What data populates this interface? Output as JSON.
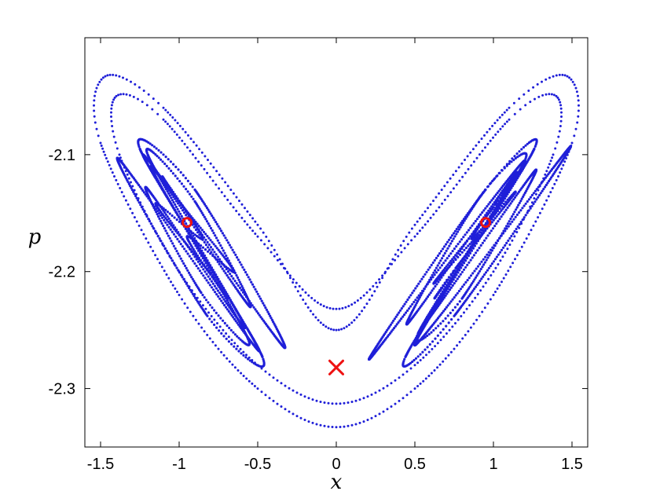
{
  "chart_data": {
    "type": "scatter",
    "title": "",
    "xlabel": "x",
    "ylabel": "p",
    "xlim": [
      -1.6,
      1.6
    ],
    "ylim": [
      -2.35,
      -2.0
    ],
    "grid": false,
    "legend": "none",
    "xticks": [
      -1.5,
      -1,
      -0.5,
      0,
      0.5,
      1,
      1.5
    ],
    "xtick_labels": [
      "-1.5",
      "-1",
      "-0.5",
      "0",
      "0.5",
      "1",
      "1.5"
    ],
    "yticks": [
      -2.1,
      -2.2,
      -2.3
    ],
    "ytick_labels": [
      "-2.1",
      "-2.2",
      "-2.3"
    ],
    "colors": {
      "orbits": "#1f1fd8",
      "fixed_points": "#ee1111"
    },
    "inner_orbits": [
      {
        "center": [
          -0.9,
          -2.171
        ],
        "points": [
          [
            -1.1,
            -2.12
          ],
          [
            -1.0,
            -2.14
          ],
          [
            -0.65,
            -2.2
          ],
          [
            -0.95,
            -2.17
          ]
        ]
      },
      {
        "center": [
          -0.88,
          -2.179
        ],
        "points": [
          [
            -1.2,
            -2.1
          ],
          [
            -0.9,
            -2.14
          ],
          [
            -0.55,
            -2.23
          ],
          [
            -1.18,
            -2.11
          ]
        ]
      },
      {
        "center": [
          -0.86,
          -2.184
        ],
        "points": [
          [
            -1.25,
            -2.095
          ],
          [
            -0.9,
            -2.13
          ],
          [
            -0.33,
            -2.265
          ],
          [
            -1.23,
            -2.1
          ]
        ]
      },
      {
        "center": [
          0.88,
          -2.171
        ],
        "points": [
          [
            1.13,
            -2.12
          ],
          [
            1.0,
            -2.145
          ],
          [
            0.62,
            -2.21
          ],
          [
            0.9,
            -2.17
          ]
        ]
      },
      {
        "center": [
          0.86,
          -2.179
        ],
        "points": [
          [
            1.2,
            -2.105
          ],
          [
            0.92,
            -2.135
          ],
          [
            0.45,
            -2.245
          ],
          [
            1.15,
            -2.115
          ]
        ]
      },
      {
        "center": [
          0.85,
          -2.184
        ],
        "points": [
          [
            1.26,
            -2.095
          ],
          [
            0.95,
            -2.13
          ],
          [
            0.21,
            -2.275
          ],
          [
            1.2,
            -2.105
          ]
        ]
      }
    ],
    "outer_orbits": [
      {
        "points": [
          [
            -1.4,
            -2.05
          ],
          [
            -1.1,
            -2.07
          ],
          [
            -0.5,
            -2.17
          ],
          [
            0.0,
            -2.232
          ],
          [
            0.5,
            -2.17
          ],
          [
            1.1,
            -2.07
          ],
          [
            1.4,
            -2.05
          ],
          [
            1.38,
            -2.1
          ],
          [
            1.0,
            -2.2
          ],
          [
            0.5,
            -2.28
          ],
          [
            0.0,
            -2.313
          ],
          [
            -0.5,
            -2.28
          ],
          [
            -1.0,
            -2.2
          ],
          [
            -1.38,
            -2.1
          ]
        ]
      },
      {
        "points": [
          [
            -1.47,
            -2.033
          ],
          [
            -1.1,
            -2.06
          ],
          [
            -0.5,
            -2.16
          ],
          [
            0.0,
            -2.25
          ],
          [
            0.5,
            -2.16
          ],
          [
            1.1,
            -2.06
          ],
          [
            1.47,
            -2.033
          ],
          [
            1.5,
            -2.09
          ],
          [
            1.0,
            -2.22
          ],
          [
            0.5,
            -2.3
          ],
          [
            0.0,
            -2.333
          ],
          [
            -0.5,
            -2.3
          ],
          [
            -1.0,
            -2.22
          ],
          [
            -1.5,
            -2.09
          ]
        ]
      }
    ],
    "elliptic_points": [
      [
        -0.95,
        -2.158
      ],
      [
        0.95,
        -2.158
      ]
    ],
    "hyperbolic_point": [
      0.0,
      -2.282
    ]
  }
}
